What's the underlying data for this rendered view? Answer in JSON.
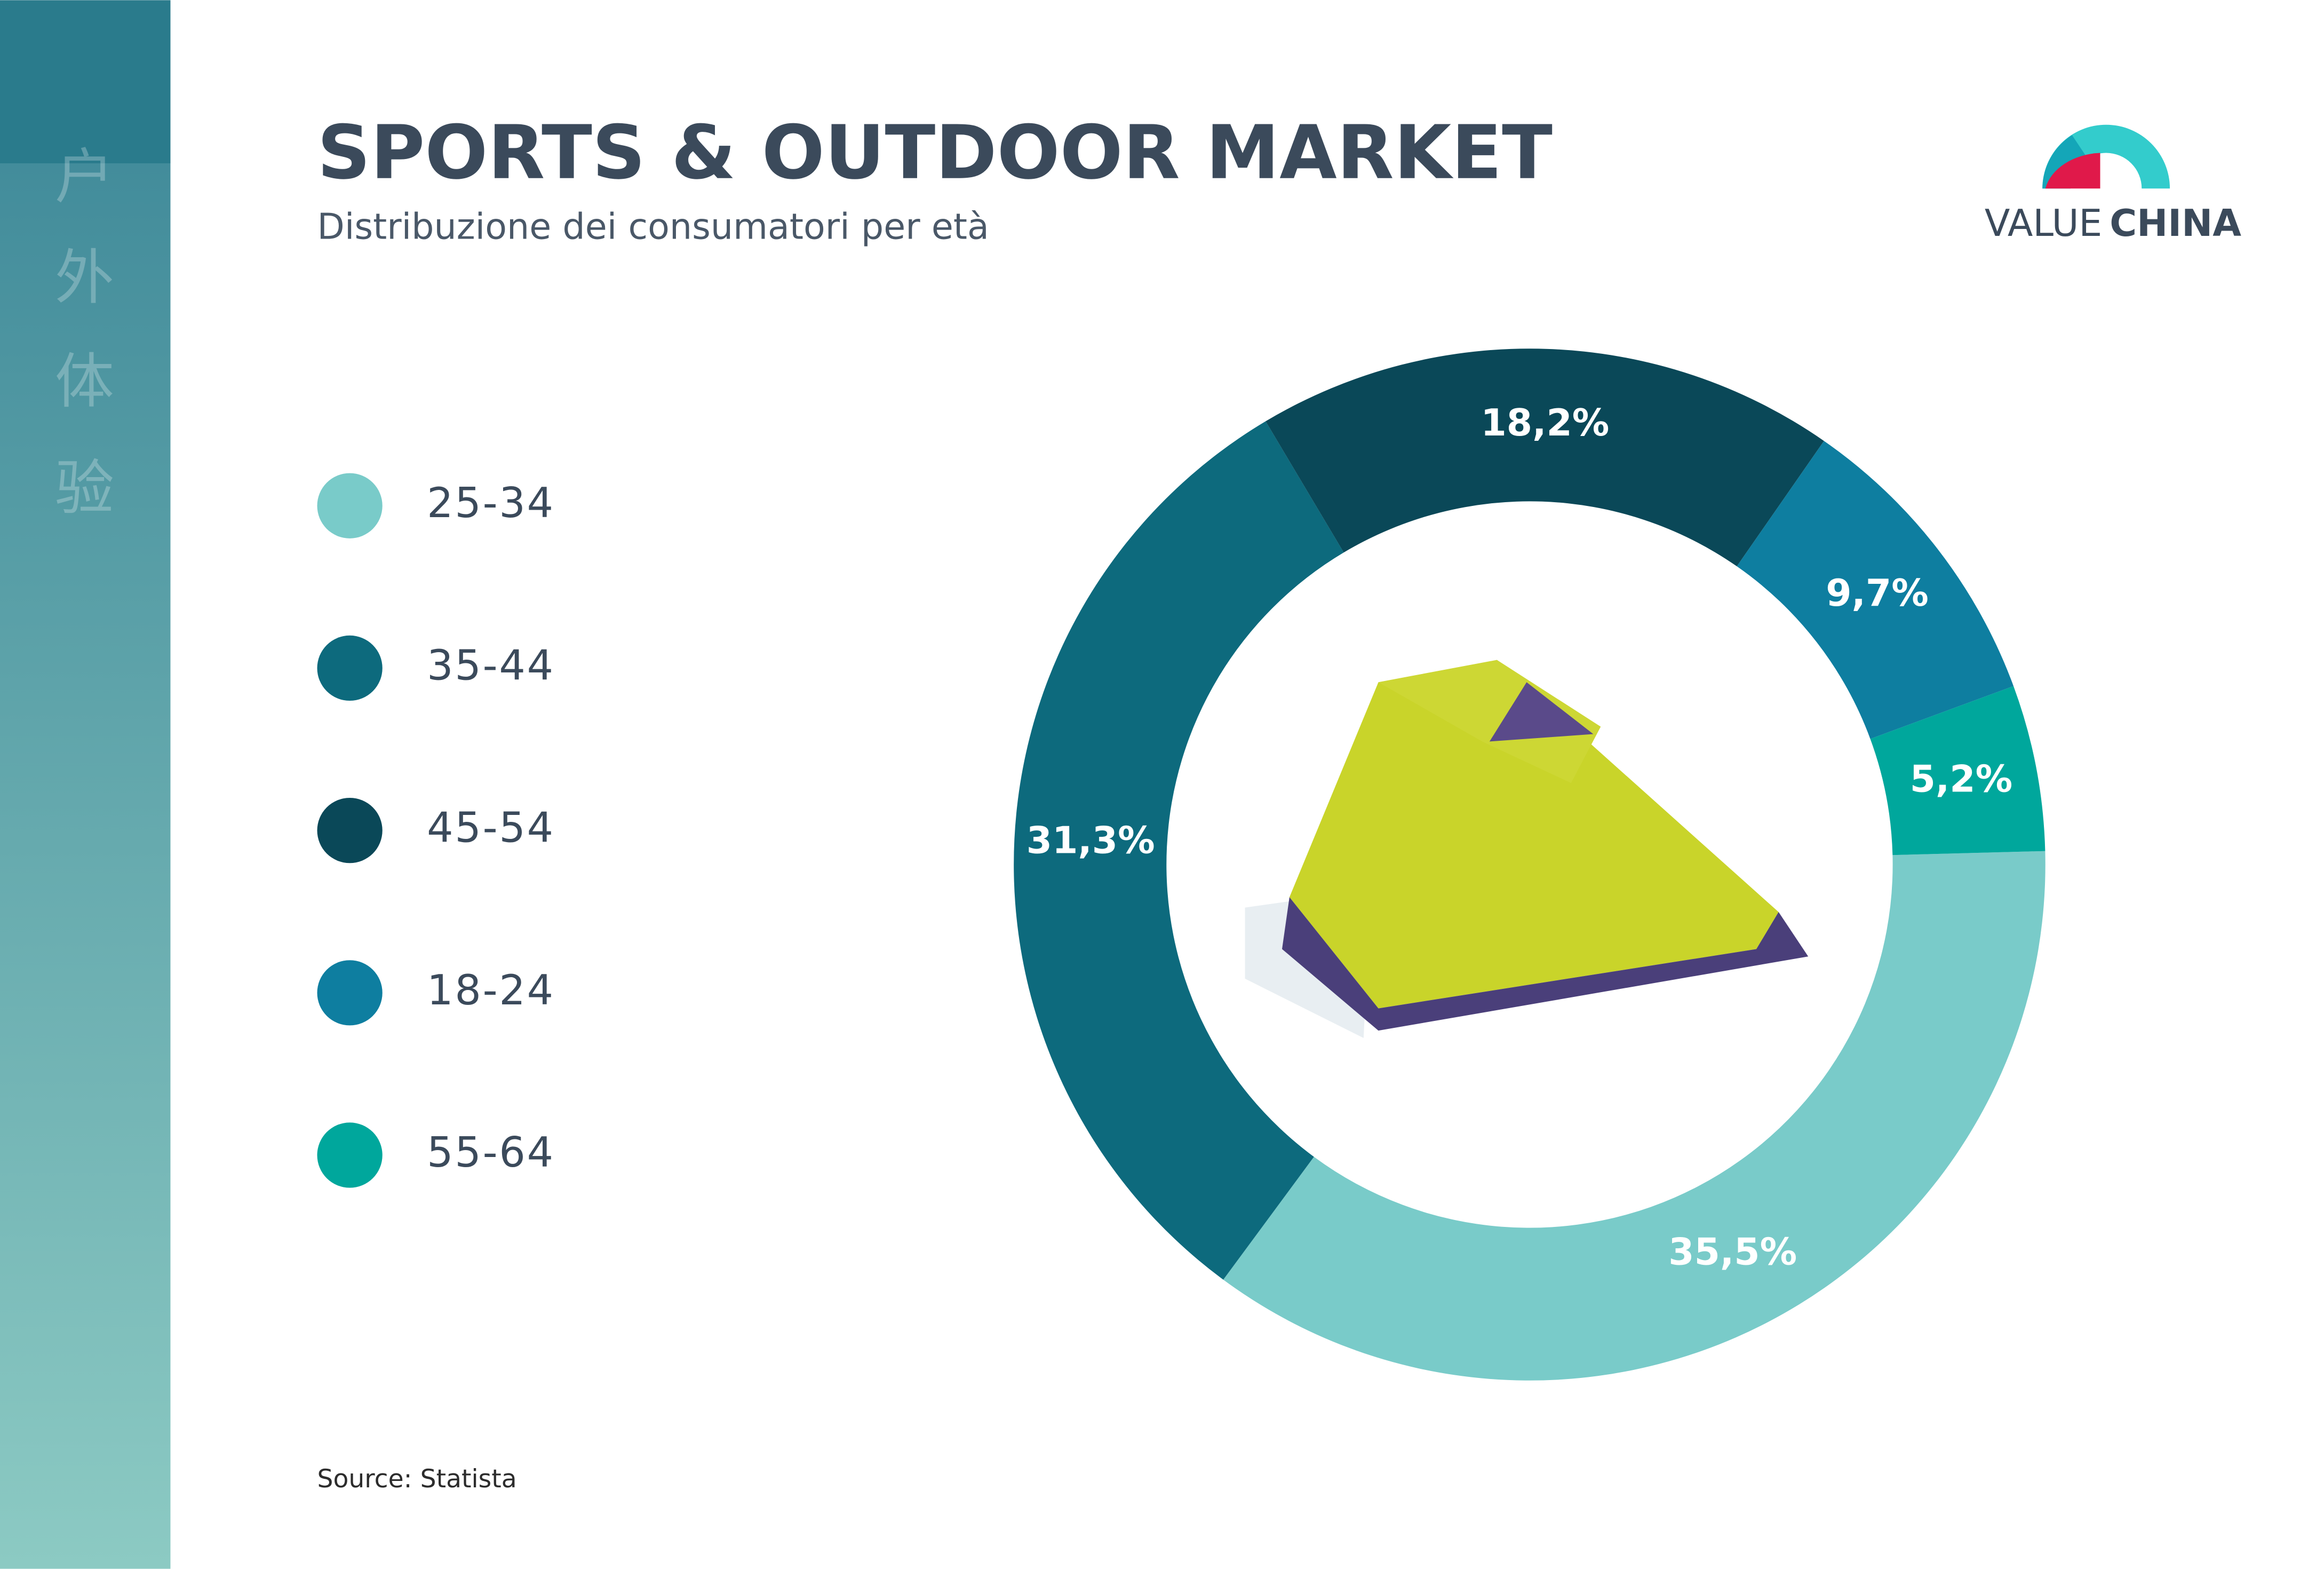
{
  "sidebar_text": [
    "户",
    "外",
    "体",
    "验"
  ],
  "logo": {
    "text": [
      "VALUE",
      "CHINA"
    ]
  },
  "chart_data": {
    "type": "donut",
    "title": "SPORTS & OUTDOOR MARKET",
    "subtitle": "Distribuzione dei consumatori per età",
    "categories": [
      "25-34",
      "35-44",
      "45-54",
      "18-24",
      "55-64"
    ],
    "values": [
      35.5,
      31.3,
      18.2,
      9.7,
      5.2
    ],
    "value_labels": [
      "35,5%",
      "31,3%",
      "18,2%",
      "9,7%",
      "5,2%"
    ],
    "colors": [
      "#79cbc9",
      "#0d6a7d",
      "#0a4858",
      "#0e7ea0",
      "#00a79c"
    ],
    "legend": "left",
    "source": "Source: Statista"
  }
}
